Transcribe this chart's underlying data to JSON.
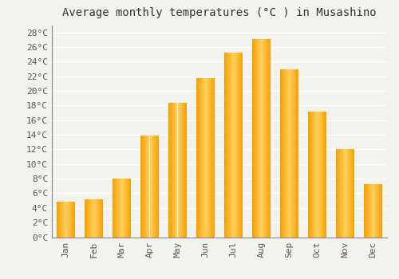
{
  "title": "Average monthly temperatures (°C ) in Musashino",
  "months": [
    "Jan",
    "Feb",
    "Mar",
    "Apr",
    "May",
    "Jun",
    "Jul",
    "Aug",
    "Sep",
    "Oct",
    "Nov",
    "Dec"
  ],
  "temperatures": [
    4.8,
    5.2,
    8.0,
    13.9,
    18.4,
    21.8,
    25.2,
    27.1,
    23.0,
    17.2,
    12.1,
    7.3
  ],
  "bar_color_dark": "#F5A000",
  "bar_color_light": "#FFD060",
  "background_color": "#F2F2EE",
  "grid_color": "#FFFFFF",
  "ylim": [
    0,
    29
  ],
  "yticks": [
    0,
    2,
    4,
    6,
    8,
    10,
    12,
    14,
    16,
    18,
    20,
    22,
    24,
    26,
    28
  ],
  "ytick_labels": [
    "0°C",
    "2°C",
    "4°C",
    "6°C",
    "8°C",
    "10°C",
    "12°C",
    "14°C",
    "16°C",
    "18°C",
    "20°C",
    "22°C",
    "24°C",
    "26°C",
    "28°C"
  ],
  "title_fontsize": 10,
  "tick_fontsize": 8,
  "font_family": "monospace"
}
